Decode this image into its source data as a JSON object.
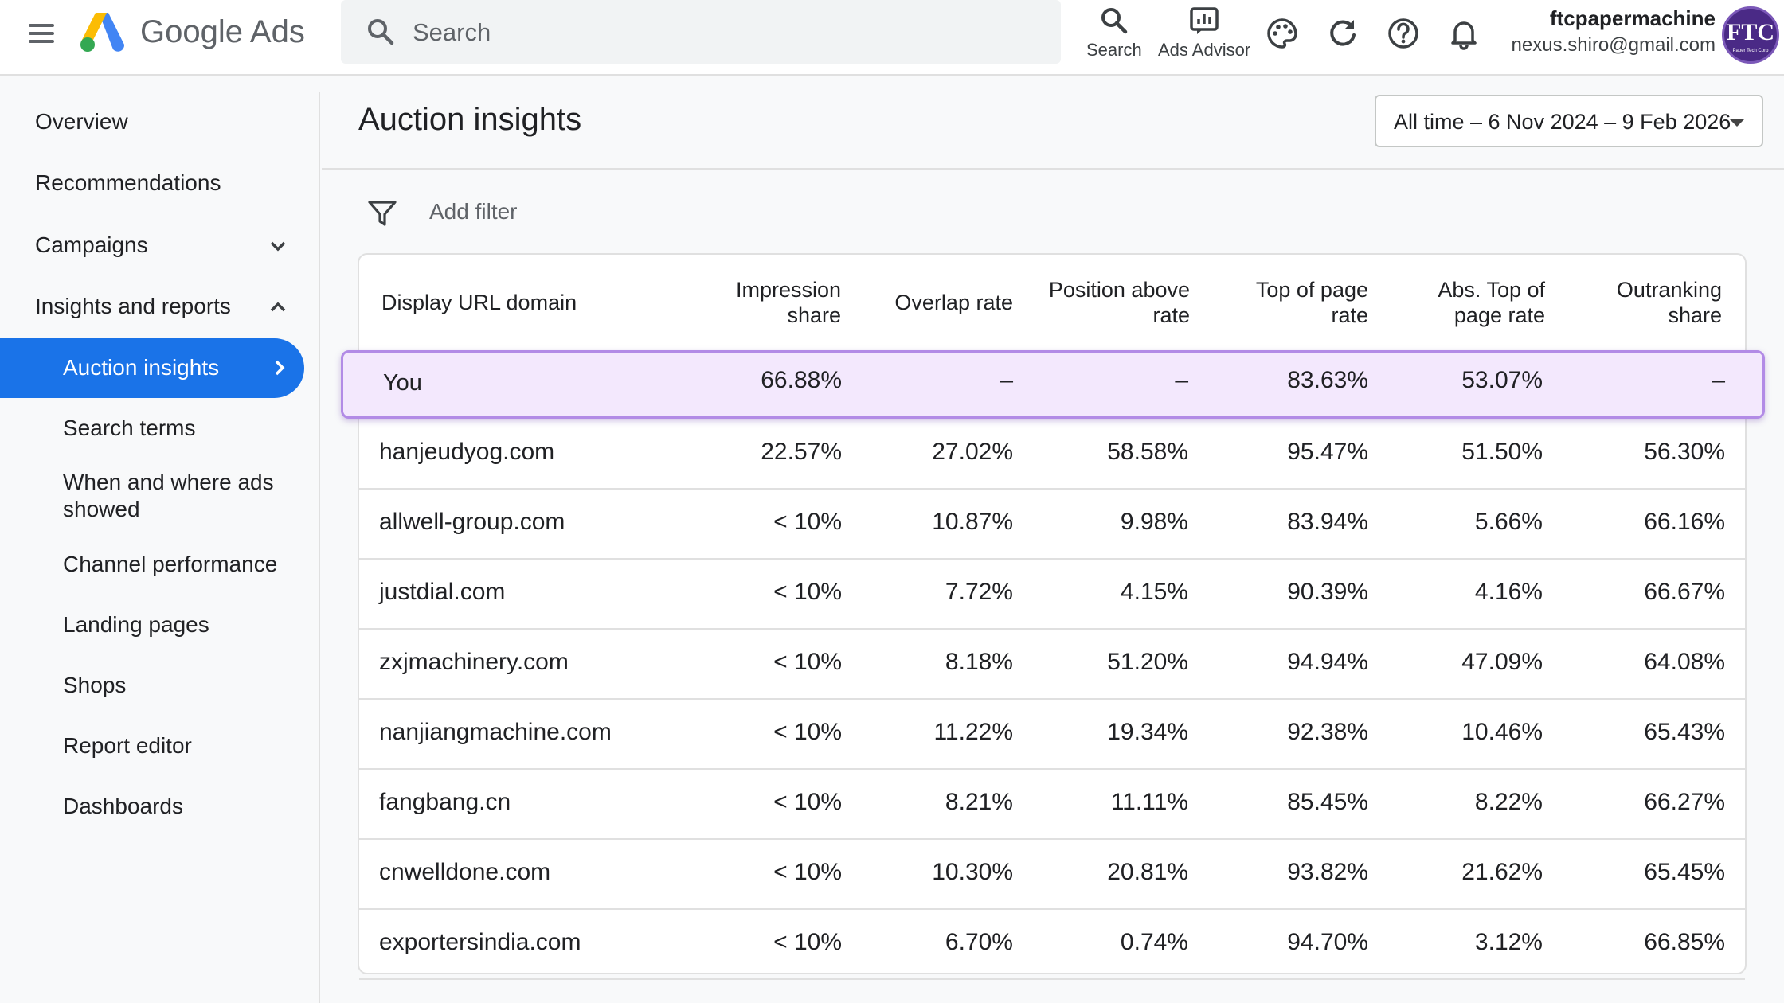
{
  "header": {
    "brand": "Google Ads",
    "search_placeholder": "Search",
    "tools": [
      {
        "label": "Search",
        "icon": "search-icon"
      },
      {
        "label": "Ads Advisor",
        "icon": "ads-advisor-icon"
      }
    ],
    "icons": [
      "palette-icon",
      "refresh-icon",
      "help-icon",
      "notifications-icon"
    ],
    "account": {
      "name": "ftcpapermachine",
      "email": "nexus.shiro@gmail.com",
      "avatar_text": "FTC",
      "avatar_subtext": "Paper Tech Corp"
    }
  },
  "sidebar": {
    "items": [
      {
        "label": "Overview"
      },
      {
        "label": "Recommendations"
      },
      {
        "label": "Campaigns",
        "chevron": "chevron-down-icon"
      },
      {
        "label": "Insights and reports",
        "chevron": "chevron-up-icon"
      },
      {
        "label": "Auction insights",
        "active": true,
        "chevron": "chevron-right-icon"
      },
      {
        "label": "Search terms"
      },
      {
        "label": "When and where ads showed"
      },
      {
        "label": "Channel performance"
      },
      {
        "label": "Landing pages"
      },
      {
        "label": "Shops"
      },
      {
        "label": "Report editor"
      },
      {
        "label": "Dashboards"
      }
    ]
  },
  "main": {
    "title": "Auction insights",
    "date_range": "All time – 6 Nov 2024 – 9 Feb 2026",
    "add_filter": "Add filter",
    "table": {
      "columns": [
        "Display URL domain",
        "Impression share",
        "Overlap rate",
        "Position above rate",
        "Top of page rate",
        "Abs. Top of page rate",
        "Outranking share"
      ],
      "rows": [
        {
          "domain": "You",
          "impression_share": "66.88%",
          "overlap_rate": "–",
          "position_above_rate": "–",
          "top_of_page_rate": "83.63%",
          "abs_top_rate": "53.07%",
          "outranking_share": "–"
        },
        {
          "domain": "hanjeudyog.com",
          "impression_share": "22.57%",
          "overlap_rate": "27.02%",
          "position_above_rate": "58.58%",
          "top_of_page_rate": "95.47%",
          "abs_top_rate": "51.50%",
          "outranking_share": "56.30%"
        },
        {
          "domain": "allwell-group.com",
          "impression_share": "< 10%",
          "overlap_rate": "10.87%",
          "position_above_rate": "9.98%",
          "top_of_page_rate": "83.94%",
          "abs_top_rate": "5.66%",
          "outranking_share": "66.16%"
        },
        {
          "domain": "justdial.com",
          "impression_share": "< 10%",
          "overlap_rate": "7.72%",
          "position_above_rate": "4.15%",
          "top_of_page_rate": "90.39%",
          "abs_top_rate": "4.16%",
          "outranking_share": "66.67%"
        },
        {
          "domain": "zxjmachinery.com",
          "impression_share": "< 10%",
          "overlap_rate": "8.18%",
          "position_above_rate": "51.20%",
          "top_of_page_rate": "94.94%",
          "abs_top_rate": "47.09%",
          "outranking_share": "64.08%"
        },
        {
          "domain": "nanjiangmachine.com",
          "impression_share": "< 10%",
          "overlap_rate": "11.22%",
          "position_above_rate": "19.34%",
          "top_of_page_rate": "92.38%",
          "abs_top_rate": "10.46%",
          "outranking_share": "65.43%"
        },
        {
          "domain": "fangbang.cn",
          "impression_share": "< 10%",
          "overlap_rate": "8.21%",
          "position_above_rate": "11.11%",
          "top_of_page_rate": "85.45%",
          "abs_top_rate": "8.22%",
          "outranking_share": "66.27%"
        },
        {
          "domain": "cnwelldone.com",
          "impression_share": "< 10%",
          "overlap_rate": "10.30%",
          "position_above_rate": "20.81%",
          "top_of_page_rate": "93.82%",
          "abs_top_rate": "21.62%",
          "outranking_share": "65.45%"
        },
        {
          "domain": "exportersindia.com",
          "impression_share": "< 10%",
          "overlap_rate": "6.70%",
          "position_above_rate": "0.74%",
          "top_of_page_rate": "94.70%",
          "abs_top_rate": "3.12%",
          "outranking_share": "66.85%"
        }
      ]
    }
  },
  "colors": {
    "accent": "#1a73e8",
    "highlight_bg": "#f3e8fd",
    "highlight_border": "#b28be6"
  }
}
